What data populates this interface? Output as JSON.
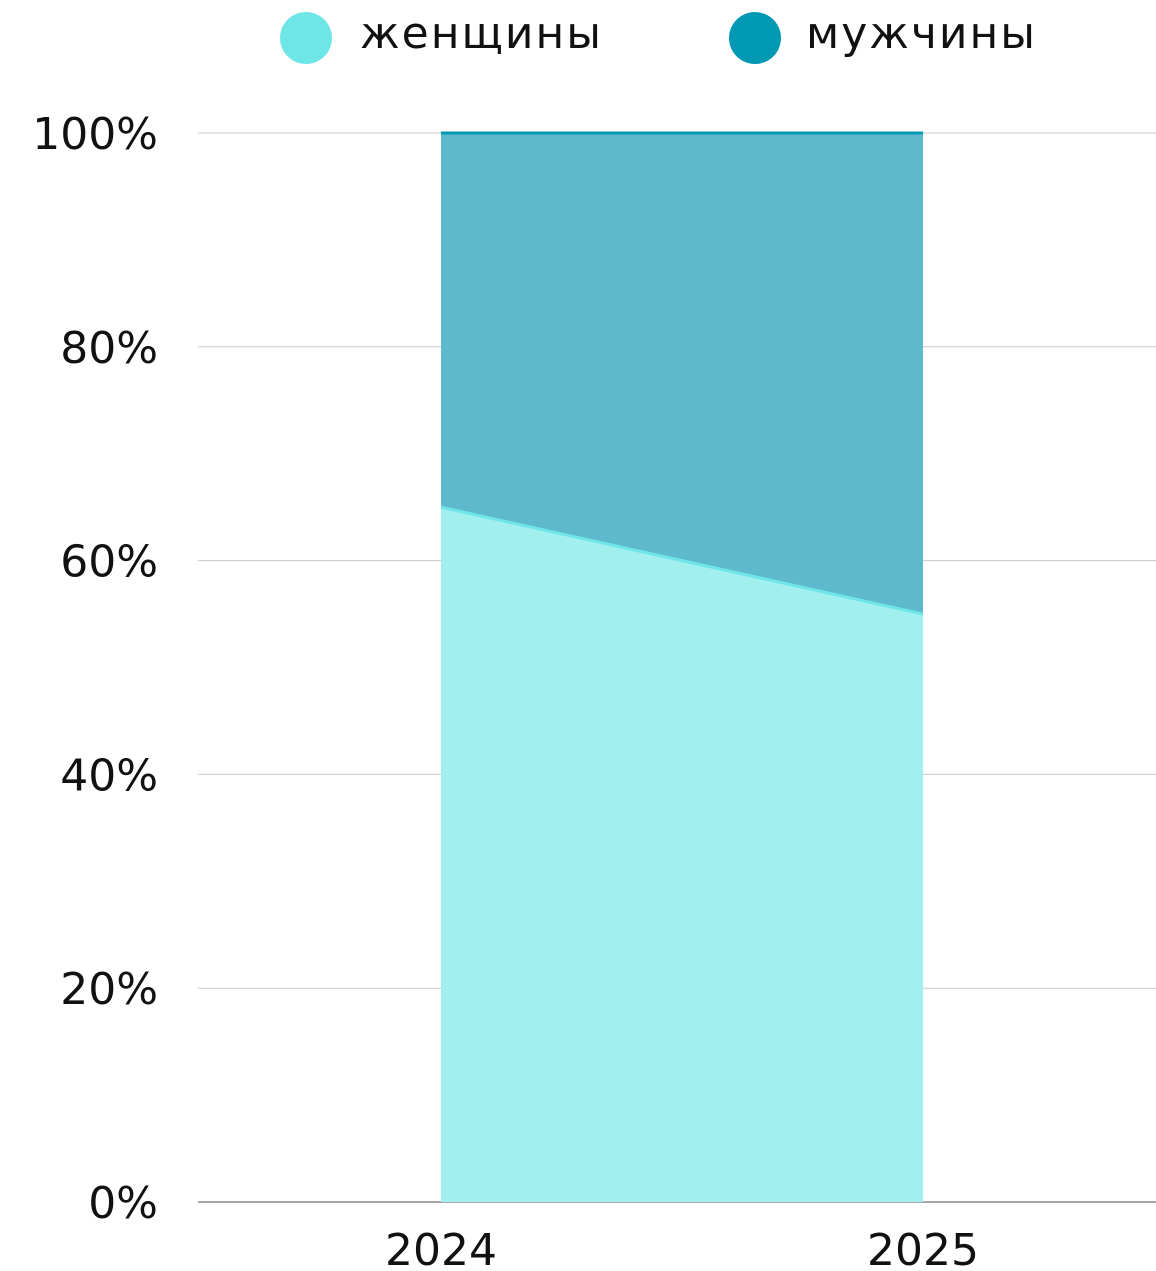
{
  "chart_data": {
    "type": "area",
    "stacked": true,
    "normalized": true,
    "x": [
      "2024",
      "2025"
    ],
    "series": [
      {
        "name": "женщины",
        "values": [
          65,
          55
        ],
        "color": "#6ee6e8",
        "fill": "#a2eff0"
      },
      {
        "name": "мужчины",
        "values": [
          35,
          45
        ],
        "color": "#0099b3",
        "fill": "#5db9cb"
      }
    ],
    "ylim": [
      0,
      100
    ],
    "yticks": [
      "0%",
      "20%",
      "40%",
      "60%",
      "80%",
      "100%"
    ],
    "grid": true,
    "legend_position": "top",
    "title": "",
    "xlabel": "",
    "ylabel": ""
  }
}
